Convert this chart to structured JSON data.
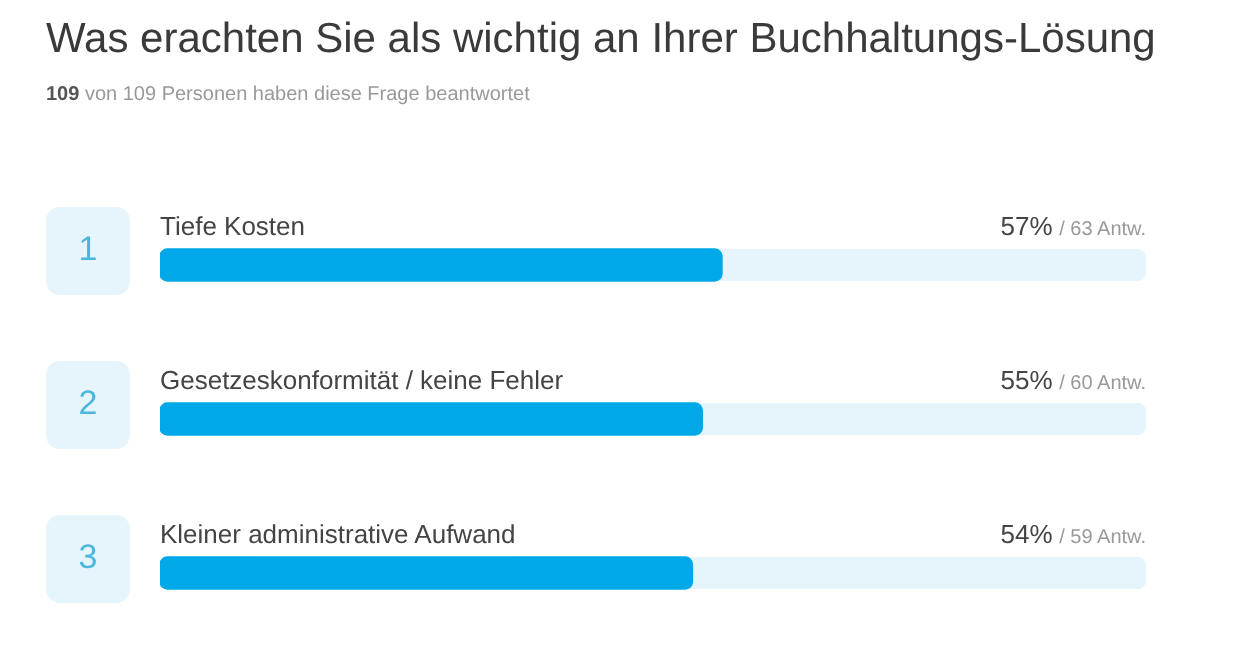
{
  "chart_data": {
    "type": "bar",
    "orientation": "horizontal",
    "title": "Was erachten Sie als wichtig an Ihrer Buchhaltungs-Lösung",
    "subtitle": "109 von 109 Personen haben diese Frage beantwortet",
    "categories": [
      "Tiefe Kosten",
      "Gesetzeskonformität / keine Fehler",
      "Kleiner administrative Aufwand"
    ],
    "values": [
      57,
      55,
      54
    ],
    "color": "#00a8e8",
    "value_labels": [
      "57%",
      "55%",
      "54%"
    ],
    "annotations": [
      "1",
      "2",
      "3",
      "/ 63 Antw.",
      "/ 60 Antw.",
      "/ 59 Antw."
    ],
    "xlim": [
      0,
      100
    ],
    "legend": false,
    "tick_labels": false
  }
}
